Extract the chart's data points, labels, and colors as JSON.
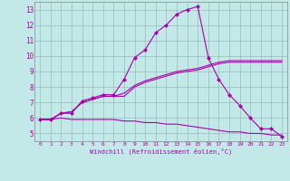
{
  "xlabel": "Windchill (Refroidissement éolien,°C)",
  "background_color": "#c2e8e8",
  "line_color": "#aa00aa",
  "grid_color": "#99bbbb",
  "xlim": [
    -0.5,
    23.5
  ],
  "ylim": [
    4.5,
    13.5
  ],
  "xticks": [
    0,
    1,
    2,
    3,
    4,
    5,
    6,
    7,
    8,
    9,
    10,
    11,
    12,
    13,
    14,
    15,
    16,
    17,
    18,
    19,
    20,
    21,
    22,
    23
  ],
  "yticks": [
    5,
    6,
    7,
    8,
    9,
    10,
    11,
    12,
    13
  ],
  "series_with_markers": [
    [
      5.9,
      5.9,
      6.3,
      6.3,
      7.1,
      7.3,
      7.5,
      7.5,
      8.5,
      9.9,
      10.4,
      11.5,
      12.0,
      12.7,
      13.0,
      13.2,
      9.9,
      8.5,
      7.5,
      6.8,
      6.0,
      5.3,
      5.3,
      4.8
    ]
  ],
  "series_no_markers": [
    [
      5.9,
      5.9,
      6.3,
      6.4,
      7.0,
      7.2,
      7.4,
      7.4,
      7.4,
      8.0,
      8.3,
      8.5,
      8.7,
      8.9,
      9.0,
      9.1,
      9.3,
      9.5,
      9.6,
      9.6,
      9.6,
      9.6,
      9.6,
      9.6
    ],
    [
      5.9,
      5.9,
      6.3,
      6.4,
      7.0,
      7.2,
      7.4,
      7.4,
      7.6,
      8.1,
      8.4,
      8.6,
      8.8,
      9.0,
      9.1,
      9.2,
      9.4,
      9.6,
      9.7,
      9.7,
      9.7,
      9.7,
      9.7,
      9.7
    ],
    [
      5.9,
      5.9,
      6.0,
      5.9,
      5.9,
      5.9,
      5.9,
      5.9,
      5.8,
      5.8,
      5.7,
      5.7,
      5.6,
      5.6,
      5.5,
      5.4,
      5.3,
      5.2,
      5.1,
      5.1,
      5.0,
      5.0,
      4.9,
      4.9
    ]
  ]
}
